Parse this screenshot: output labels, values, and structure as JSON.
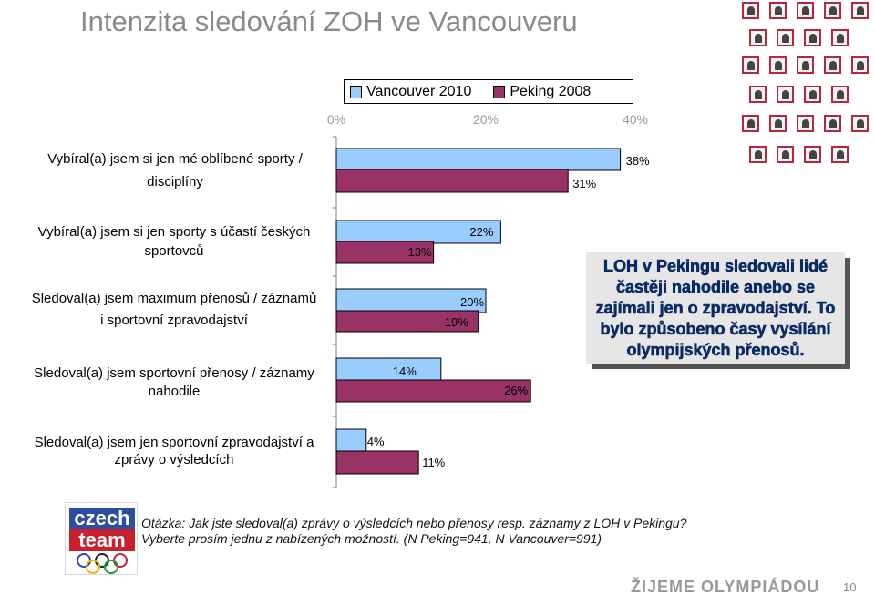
{
  "title": "Intenzita sledování ZOH ve Vancouveru",
  "legend": {
    "items": [
      {
        "label": "Vancouver 2010",
        "color": "#99ccff"
      },
      {
        "label": "Peking 2008",
        "color": "#993366"
      }
    ]
  },
  "callout": {
    "text": "LOH v Pekingu sledovali lidé častěji nahodile anebo se zajímali jen o zpravodajství. To bylo způsobeno časy vysílání olympijských přenosů."
  },
  "note": {
    "line1": "Otázka: Jak jste sledoval(a) zprávy o výsledcích nebo přenosy resp. záznamy z LOH v Pekingu?",
    "line2": "Vyberte prosím jednu z nabízených možností. (N Peking=941, N Vancouver=991)"
  },
  "logo": {
    "line1": "czech",
    "line2": "team"
  },
  "footer": {
    "brand": "ŽIJEME OLYMPIÁDOU",
    "page": "10"
  },
  "chart_data": {
    "type": "bar",
    "orientation": "horizontal",
    "xlim": [
      0,
      40
    ],
    "ticks": [
      "0%",
      "20%",
      "40%"
    ],
    "tick_values": [
      0,
      20,
      40
    ],
    "legend_position": "top",
    "grid": false,
    "categories": [
      "Vybíral(a) jsem si jen mé oblíbené sporty / disciplíny",
      "Vybíral(a) jsem si jen sporty s účastí českých sportovců",
      "Sledoval(a) jsem maximum přenosů / záznamů i sportovní zpravodajství",
      "Sledoval(a) jsem sportovní přenosy / záznamy nahodile",
      "Sledoval(a) jsem jen sportovní zpravodajství a zprávy o výsledcích"
    ],
    "category_lines": [
      [
        "Vybíral(a) jsem si jen mé oblíbené sporty /",
        "disciplíny"
      ],
      [
        "Vybíral(a) jsem si jen sporty s účastí českých",
        "sportovců"
      ],
      [
        "Sledoval(a) jsem maximum přenosů / záznamů",
        "i sportovní zpravodajství"
      ],
      [
        "Sledoval(a) jsem sportovní přenosy / záznamy",
        "nahodile"
      ],
      [
        "Sledoval(a) jsem jen sportovní zpravodajství a",
        "zprávy o výsledcích"
      ]
    ],
    "series": [
      {
        "name": "Vancouver 2010",
        "values": [
          38,
          22,
          20,
          14,
          4
        ],
        "labels": [
          "38%",
          "22%",
          "20%",
          "14%",
          "4%"
        ]
      },
      {
        "name": "Peking 2008",
        "values": [
          31,
          13,
          19,
          26,
          11
        ],
        "labels": [
          "31%",
          "13%",
          "19%",
          "26%",
          "11%"
        ]
      }
    ]
  }
}
